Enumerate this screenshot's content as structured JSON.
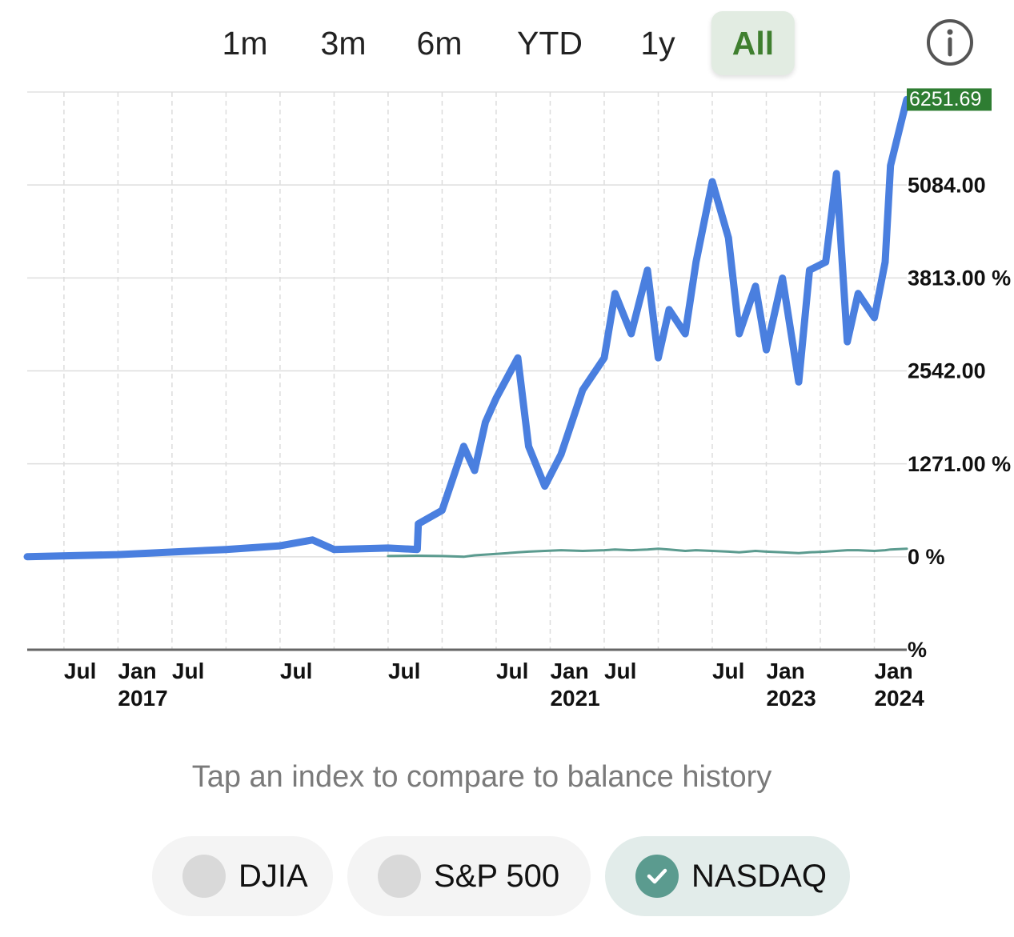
{
  "tabs": {
    "items": [
      {
        "label": "1m",
        "selected": false
      },
      {
        "label": "3m",
        "selected": false
      },
      {
        "label": "6m",
        "selected": false
      },
      {
        "label": "YTD",
        "selected": false
      },
      {
        "label": "1y",
        "selected": false
      },
      {
        "label": "All",
        "selected": true
      }
    ]
  },
  "chart_data": {
    "type": "line",
    "x": [
      2016.16,
      2017.0,
      2018.0,
      2018.5,
      2018.8,
      2019.0,
      2019.5,
      2019.77,
      2019.78,
      2020.0,
      2020.2,
      2020.3,
      2020.4,
      2020.5,
      2020.7,
      2020.8,
      2020.95,
      2021.1,
      2021.3,
      2021.5,
      2021.6,
      2021.75,
      2021.9,
      2022.0,
      2022.1,
      2022.25,
      2022.35,
      2022.5,
      2022.65,
      2022.75,
      2022.9,
      2023.0,
      2023.15,
      2023.3,
      2023.4,
      2023.55,
      2023.65,
      2023.75,
      2023.85,
      2024.0,
      2024.1,
      2024.15,
      2024.3
    ],
    "series": [
      {
        "color": "#5b9b8f",
        "values": [
          null,
          null,
          null,
          null,
          null,
          null,
          10,
          15,
          15,
          10,
          0,
          20,
          30,
          40,
          60,
          70,
          80,
          90,
          80,
          90,
          100,
          90,
          100,
          110,
          100,
          80,
          90,
          80,
          70,
          60,
          80,
          70,
          60,
          50,
          60,
          70,
          80,
          90,
          90,
          80,
          90,
          100,
          110
        ]
      },
      {
        "color": "#4a7fdf",
        "values": [
          0,
          30,
          100,
          150,
          230,
          100,
          120,
          100,
          450,
          635,
          1510,
          1180,
          1840,
          2170,
          2720,
          1510,
          965,
          1400,
          2280,
          2720,
          3600,
          3050,
          3920,
          2720,
          3380,
          3050,
          4030,
          5130,
          4360,
          3050,
          3700,
          2830,
          3810,
          2390,
          3920,
          4030,
          5240,
          2940,
          3600,
          3270,
          4030,
          5350,
          6251.69
        ]
      }
    ],
    "last_value_color": "#2e7d32",
    "xlim": [
      2016.16,
      2024.3
    ],
    "xticks": [
      {
        "value": 2016.5,
        "label": "Jul"
      },
      {
        "value": 2017.0,
        "label": "Jan\n2017"
      },
      {
        "value": 2017.5,
        "label": "Jul"
      },
      {
        "value": 2018.5,
        "label": "Jul"
      },
      {
        "value": 2019.5,
        "label": "Jul"
      },
      {
        "value": 2020.5,
        "label": "Jul"
      },
      {
        "value": 2021.0,
        "label": "Jan\n2021"
      },
      {
        "value": 2021.5,
        "label": "Jul"
      },
      {
        "value": 2022.5,
        "label": "Jul"
      },
      {
        "value": 2023.0,
        "label": "Jan\n2023"
      },
      {
        "value": 2024.0,
        "label": "Jan\n2024"
      }
    ],
    "xminor": [
      2018.0,
      2019.0,
      2020.0,
      2022.0,
      2023.5
    ],
    "ylim": [
      -1271,
      6355
    ],
    "yticks": [
      {
        "value": 5084,
        "label": "5084.00"
      },
      {
        "value": 3813,
        "label": "3813.00 %"
      },
      {
        "value": 2542,
        "label": "2542.00"
      },
      {
        "value": 1271,
        "label": "1271.00 %"
      },
      {
        "value": 0,
        "label": "0 %"
      },
      {
        "value": -1271,
        "label": "%"
      }
    ],
    "grid": true
  },
  "hint": "Tap an index to compare to balance history",
  "indices": {
    "items": [
      {
        "label": "DJIA",
        "checked": false
      },
      {
        "label": "S&P 500",
        "checked": false
      },
      {
        "label": "NASDAQ",
        "checked": true
      }
    ]
  }
}
